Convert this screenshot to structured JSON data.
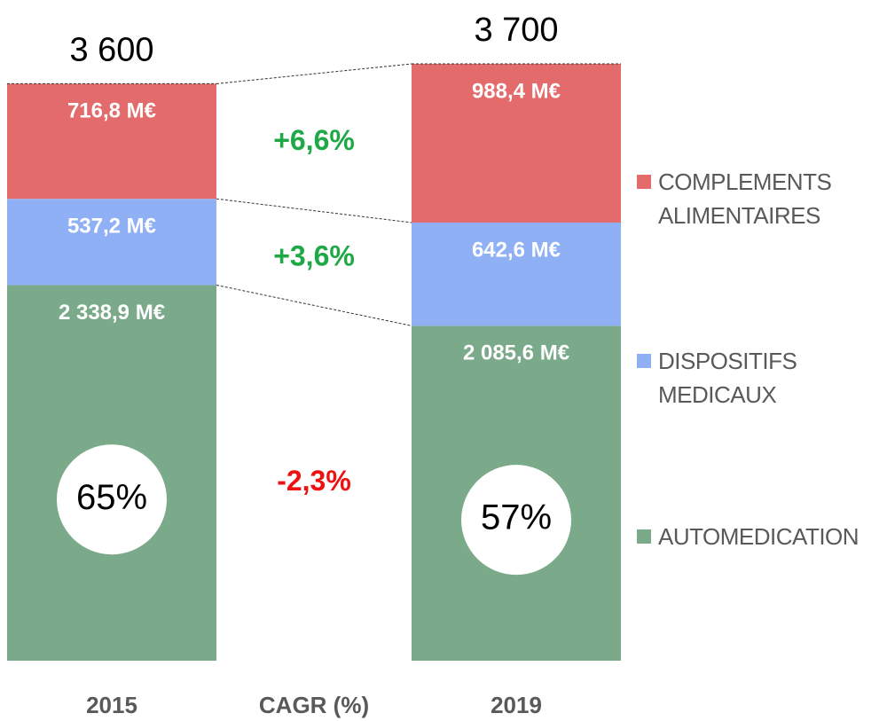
{
  "chart_data": {
    "type": "stacked_bar",
    "categories": [
      "2015",
      "2019"
    ],
    "series": [
      {
        "name": "AUTOMEDICATION",
        "color": "#7baa8b",
        "values": [
          2338.9,
          2085.6
        ],
        "value_labels": [
          "2 338,9 M€",
          "2 085,6 M€"
        ]
      },
      {
        "name": "DISPOSITIFS MEDICAUX",
        "color": "#8fb0f4",
        "values": [
          537.2,
          642.6
        ],
        "value_labels": [
          "537,2 M€",
          "642,6 M€"
        ]
      },
      {
        "name": "COMPLEMENTS ALIMENTAIRES",
        "color": "#e36b6b",
        "values": [
          716.8,
          988.4
        ],
        "value_labels": [
          "716,8 M€",
          "988,4 M€"
        ]
      }
    ],
    "totals": {
      "values": [
        3600,
        3700
      ],
      "value_labels": [
        "3 600",
        "3 700"
      ]
    },
    "shares": {
      "values": [
        65,
        57
      ],
      "value_labels": [
        "65%",
        "57%"
      ]
    },
    "cagr": {
      "label": "CAGR (%)",
      "values": [
        -2.3,
        3.6,
        6.6
      ],
      "value_labels": [
        "-2,3%",
        "+3,6%",
        "+6,6%"
      ],
      "colors": [
        "#ee1111",
        "#1fa846",
        "#1fa846"
      ]
    }
  }
}
